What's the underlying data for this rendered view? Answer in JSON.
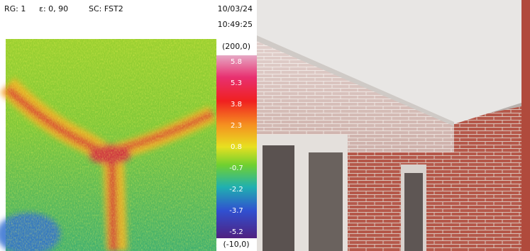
{
  "header": {
    "range": "RG: 1",
    "emissivity": "ε: 0, 90",
    "scale": "SC: FST2",
    "date": "10/03/24",
    "time": "10:49:25"
  },
  "scale_bar": {
    "max": "(200,0)",
    "labels": [
      "5.8",
      "5.3",
      "3.8",
      "2.3",
      "0.8",
      "-0.7",
      "-2.2",
      "-3.7",
      "-5.2"
    ],
    "min": "(-10,0)"
  }
}
